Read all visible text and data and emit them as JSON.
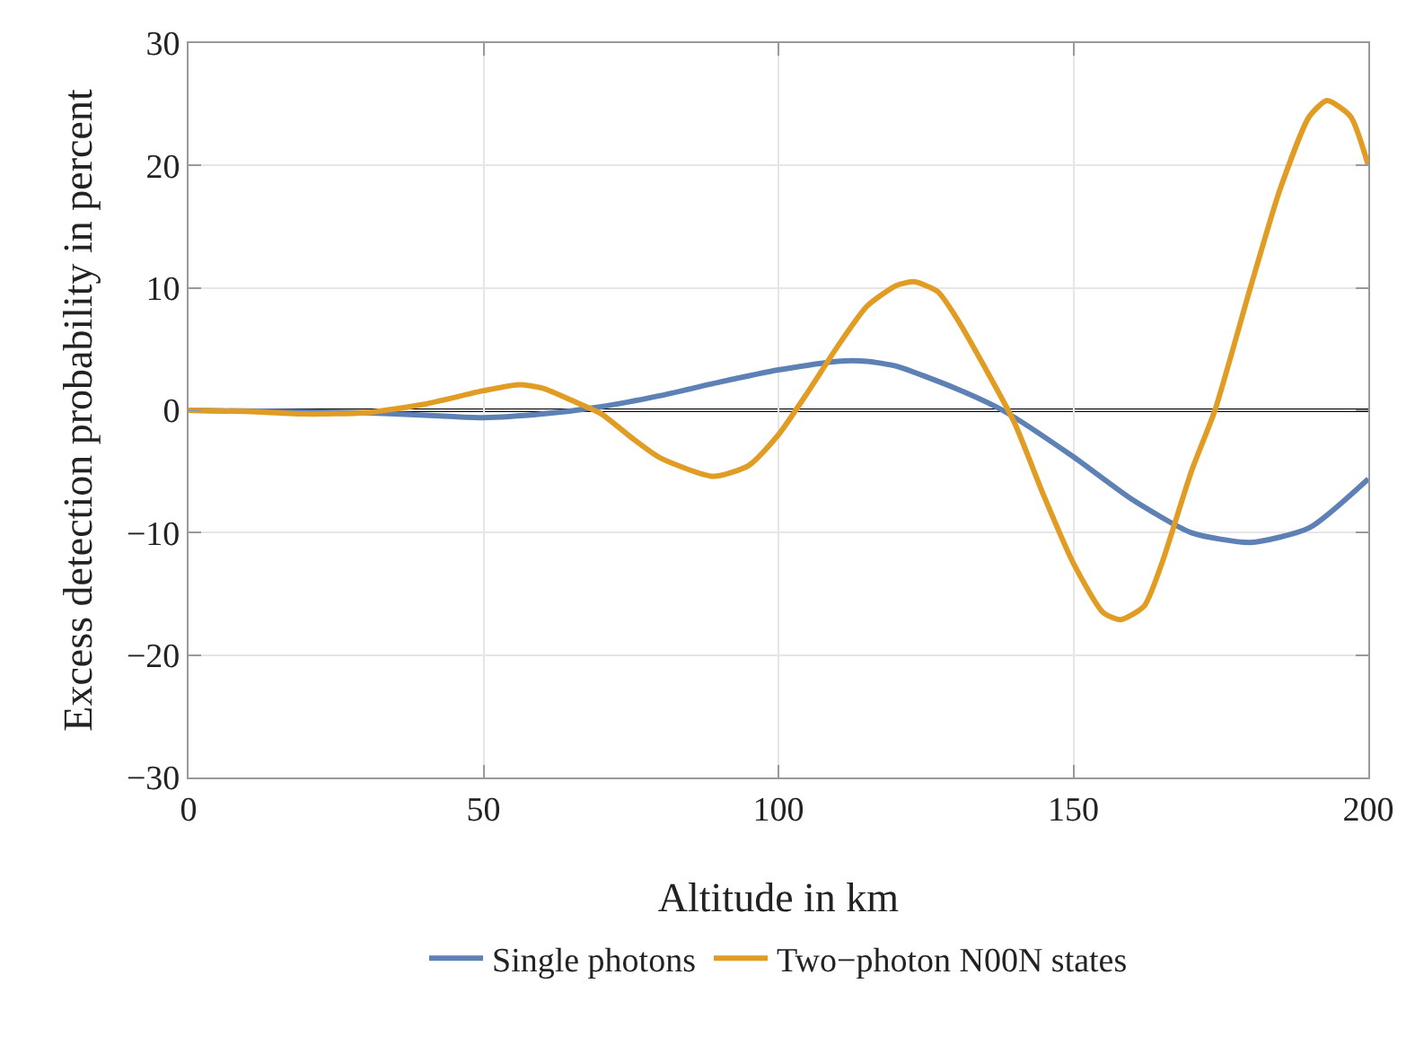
{
  "chart_data": {
    "type": "line",
    "xlabel": "Altitude in km",
    "ylabel": "Excess detection probability in percent",
    "xlim": [
      0,
      200
    ],
    "xticks": [
      0,
      50,
      100,
      150,
      200
    ],
    "ylim": [
      -30,
      30
    ],
    "yticks": [
      -30,
      -20,
      -10,
      0,
      10,
      20,
      30
    ],
    "grid": true,
    "legend": "bottom",
    "line_style": "solid",
    "marker": "none",
    "ref_lines": [
      {
        "axis": "y",
        "value": 0,
        "color": "#000000"
      }
    ],
    "series": [
      {
        "name": "Single photons",
        "color": "#5e81b5",
        "x": [
          0,
          15,
          30,
          40,
          50,
          60,
          70,
          80,
          90,
          100,
          110,
          115,
          120,
          130,
          138,
          150,
          160,
          170,
          180,
          190,
          200
        ],
        "values": [
          0,
          -0.1,
          -0.2,
          -0.4,
          -0.6,
          -0.3,
          0.3,
          1.2,
          2.3,
          3.3,
          4.0,
          4.0,
          3.6,
          1.8,
          0,
          -3.8,
          -7.3,
          -10,
          -10.8,
          -9.6,
          -5.6
        ]
      },
      {
        "name": "Two−photon N00N states",
        "color": "#e19c24",
        "x": [
          0,
          10,
          20,
          30,
          40,
          50,
          56,
          60,
          65,
          70,
          75,
          80,
          89,
          95,
          100,
          105,
          110,
          115,
          120,
          123,
          127,
          130,
          135,
          140,
          145,
          150,
          155,
          158,
          162,
          165,
          170,
          174,
          180,
          185,
          190,
          193,
          197,
          200
        ],
        "values": [
          0,
          -0.1,
          -0.3,
          -0.2,
          0.5,
          1.6,
          2.1,
          1.8,
          0.8,
          -0.3,
          -2.2,
          -3.9,
          -5.4,
          -4.5,
          -2,
          1.5,
          5.2,
          8.5,
          10.2,
          10.5,
          9.7,
          7.7,
          3.5,
          -1,
          -7,
          -12.5,
          -16.5,
          -17.1,
          -16,
          -12.5,
          -5,
          0,
          10,
          18,
          24,
          25.3,
          24,
          20
        ]
      }
    ]
  }
}
